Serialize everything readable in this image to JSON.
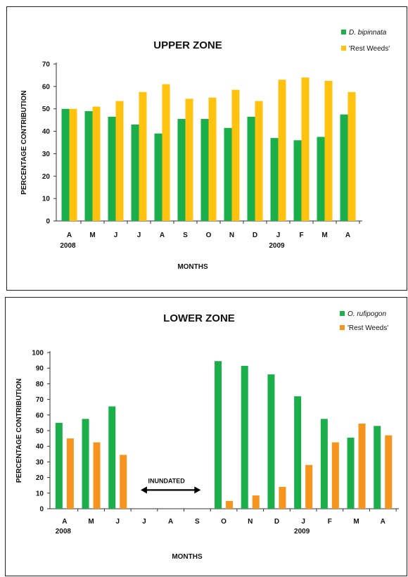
{
  "chart_data": [
    {
      "type": "bar",
      "title": "UPPER ZONE",
      "xlabel": "MONTHS",
      "ylabel": "PERCENTAGE CONTRIBUTION",
      "ylim": [
        0,
        70
      ],
      "yticks": [
        0,
        10,
        20,
        30,
        40,
        50,
        60,
        70
      ],
      "categories": [
        "A",
        "M",
        "J",
        "J",
        "A",
        "S",
        "O",
        "N",
        "D",
        "J",
        "F",
        "M",
        "A"
      ],
      "year_labels": [
        {
          "index": 0,
          "label": "2008"
        },
        {
          "index": 9,
          "label": "2009"
        }
      ],
      "legend_position": "top-right",
      "grid": false,
      "series": [
        {
          "name": "D. bipinnata",
          "italic": true,
          "color": "#1aaf4b",
          "values": [
            50,
            49,
            46.5,
            43,
            39,
            45.5,
            45.5,
            41.5,
            46.5,
            37,
            36,
            37.5,
            47.5
          ]
        },
        {
          "name": "'Rest Weeds'",
          "italic": false,
          "color": "#ffc20e",
          "values": [
            50,
            51,
            53.5,
            57.5,
            61,
            54.5,
            55,
            58.5,
            53.5,
            63,
            64,
            62.5,
            57.5
          ]
        }
      ]
    },
    {
      "type": "bar",
      "title": "LOWER ZONE",
      "xlabel": "MONTHS",
      "ylabel": "PERCENTAGE CONTRIBUTION",
      "ylim": [
        0,
        100
      ],
      "yticks": [
        0,
        10,
        20,
        30,
        40,
        50,
        60,
        70,
        80,
        90,
        100
      ],
      "categories": [
        "A",
        "M",
        "J",
        "J",
        "A",
        "S",
        "O",
        "N",
        "D",
        "J",
        "F",
        "M",
        "A"
      ],
      "year_labels": [
        {
          "index": 0,
          "label": "2008"
        },
        {
          "index": 9,
          "label": "2009"
        }
      ],
      "legend_position": "top-right",
      "grid": false,
      "annotation": {
        "text": "INUNDATED",
        "from_index": 3,
        "to_index": 5
      },
      "series": [
        {
          "name": "O. rufipogon",
          "italic": true,
          "color": "#1aaf4b",
          "values": [
            55,
            57.5,
            65.5,
            null,
            null,
            null,
            94.5,
            91.5,
            86,
            72,
            57.5,
            45.5,
            53
          ]
        },
        {
          "name": "'Rest Weeds'",
          "italic": false,
          "color": "#f7941d",
          "values": [
            45,
            42.5,
            34.5,
            null,
            null,
            null,
            5,
            8.5,
            14,
            28,
            42.5,
            54.5,
            47
          ]
        }
      ]
    }
  ]
}
